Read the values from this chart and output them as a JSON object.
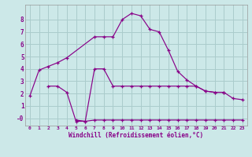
{
  "xlabel": "Windchill (Refroidissement éolien,°C)",
  "bg_color": "#cce8e8",
  "grid_color": "#aacccc",
  "line_color": "#880088",
  "x_ticks": [
    0,
    1,
    2,
    3,
    4,
    5,
    6,
    7,
    8,
    9,
    10,
    11,
    12,
    13,
    14,
    15,
    16,
    17,
    18,
    19,
    20,
    21,
    22,
    23
  ],
  "y_ticks": [
    0,
    1,
    2,
    3,
    4,
    5,
    6,
    7,
    8
  ],
  "ylim": [
    -0.6,
    9.2
  ],
  "xlim": [
    -0.5,
    23.5
  ],
  "curve1_x": [
    0,
    1,
    2,
    3,
    4,
    7,
    8,
    9,
    10,
    11,
    12,
    13,
    14,
    15,
    16,
    17,
    18,
    19,
    20,
    21,
    22,
    23
  ],
  "curve1_y": [
    1.8,
    3.9,
    4.2,
    4.5,
    4.9,
    6.6,
    6.6,
    6.6,
    8.0,
    8.5,
    8.3,
    7.2,
    7.0,
    5.5,
    3.8,
    3.1,
    2.6,
    2.2,
    2.1,
    2.1,
    1.6,
    1.5
  ],
  "curve2_x": [
    2,
    3,
    4,
    5,
    6,
    7,
    8,
    9,
    10,
    11,
    12,
    13,
    14,
    15,
    16,
    17,
    18,
    19,
    20,
    21
  ],
  "curve2_y": [
    2.6,
    2.6,
    2.1,
    -0.25,
    -0.25,
    4.0,
    4.0,
    2.6,
    2.6,
    2.6,
    2.6,
    2.6,
    2.6,
    2.6,
    2.6,
    2.6,
    2.6,
    2.2,
    2.1,
    2.1
  ],
  "curve3_x": [
    5,
    6,
    7,
    8,
    9,
    10,
    11,
    12,
    13,
    14,
    15,
    16,
    17,
    18,
    19,
    20,
    21,
    22,
    23
  ],
  "curve3_y": [
    -0.15,
    -0.25,
    -0.15,
    -0.15,
    -0.15,
    -0.15,
    -0.15,
    -0.15,
    -0.15,
    -0.15,
    -0.15,
    -0.15,
    -0.15,
    -0.15,
    -0.15,
    -0.15,
    -0.15,
    -0.15,
    -0.15
  ]
}
